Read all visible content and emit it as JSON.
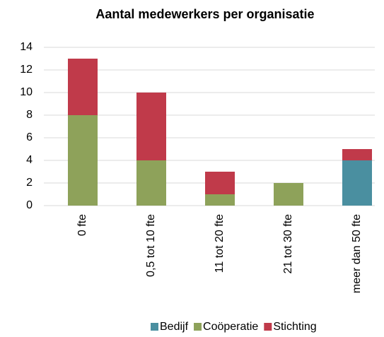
{
  "chart_data": {
    "type": "stacked_bar",
    "title": "Aantal medewerkers per organisatie",
    "categories": [
      "0 fte",
      "0,5 tot 10 fte",
      "11 tot 20 fte",
      "21 tot 30 fte",
      "meer dan 50 fte"
    ],
    "series": [
      {
        "name": "Bedijf",
        "color": "#4a8fa0",
        "values": [
          0,
          0,
          0,
          0,
          4
        ]
      },
      {
        "name": "Coöperatie",
        "color": "#8ea25a",
        "values": [
          8,
          4,
          1,
          2,
          0
        ]
      },
      {
        "name": "Stichting",
        "color": "#c03a4a",
        "values": [
          5,
          6,
          2,
          0,
          1
        ]
      }
    ],
    "ylim": [
      0,
      14
    ],
    "yticks": [
      0,
      2,
      4,
      6,
      8,
      10,
      12,
      14
    ],
    "grid": true,
    "legend": "bottom"
  }
}
